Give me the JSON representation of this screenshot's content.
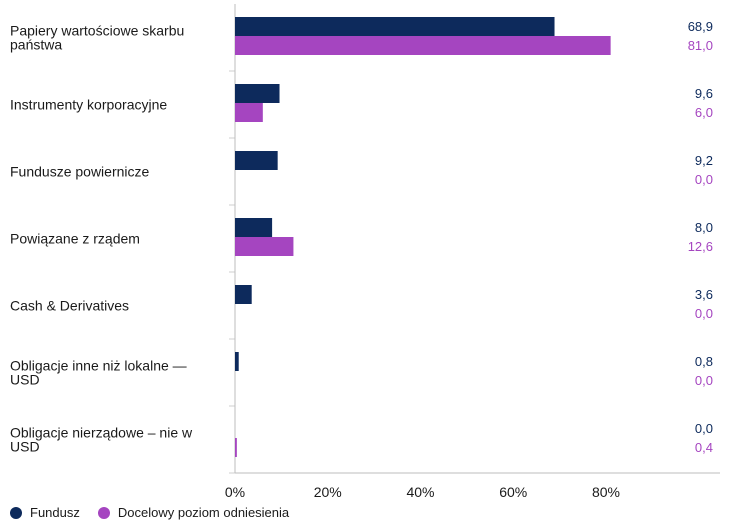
{
  "chart_data": {
    "type": "bar",
    "orientation": "horizontal",
    "categories": [
      [
        "Papiery wartościowe skarbu",
        "państwa"
      ],
      [
        "Instrumenty korporacyjne"
      ],
      [
        "Fundusze powiernicze"
      ],
      [
        "Powiązane z rządem"
      ],
      [
        "Cash & Derivatives"
      ],
      [
        "Obligacje inne niż lokalne —",
        "USD"
      ],
      [
        "Obligacje nierządowe – nie w",
        "USD"
      ]
    ],
    "series": [
      {
        "name": "Fundusz",
        "color": "#0d2a5c",
        "values": [
          68.9,
          9.6,
          9.2,
          8.0,
          3.6,
          0.8,
          0.0
        ],
        "labels": [
          "68,9",
          "9,6",
          "9,2",
          "8,0",
          "3,6",
          "0,8",
          "0,0"
        ]
      },
      {
        "name": "Docelowy poziom odniesienia",
        "color": "#a545c0",
        "values": [
          81.0,
          6.0,
          0.0,
          12.6,
          0.0,
          0.0,
          0.4
        ],
        "labels": [
          "81,0",
          "6,0",
          "0,0",
          "12,6",
          "0,0",
          "0,0",
          "0,4"
        ]
      }
    ],
    "xlim": [
      0,
      100
    ],
    "xticks": [
      0,
      20,
      40,
      60,
      80
    ],
    "xtick_labels": [
      "0%",
      "20%",
      "40%",
      "60%",
      "80%"
    ],
    "legend_position": "bottom-left"
  }
}
